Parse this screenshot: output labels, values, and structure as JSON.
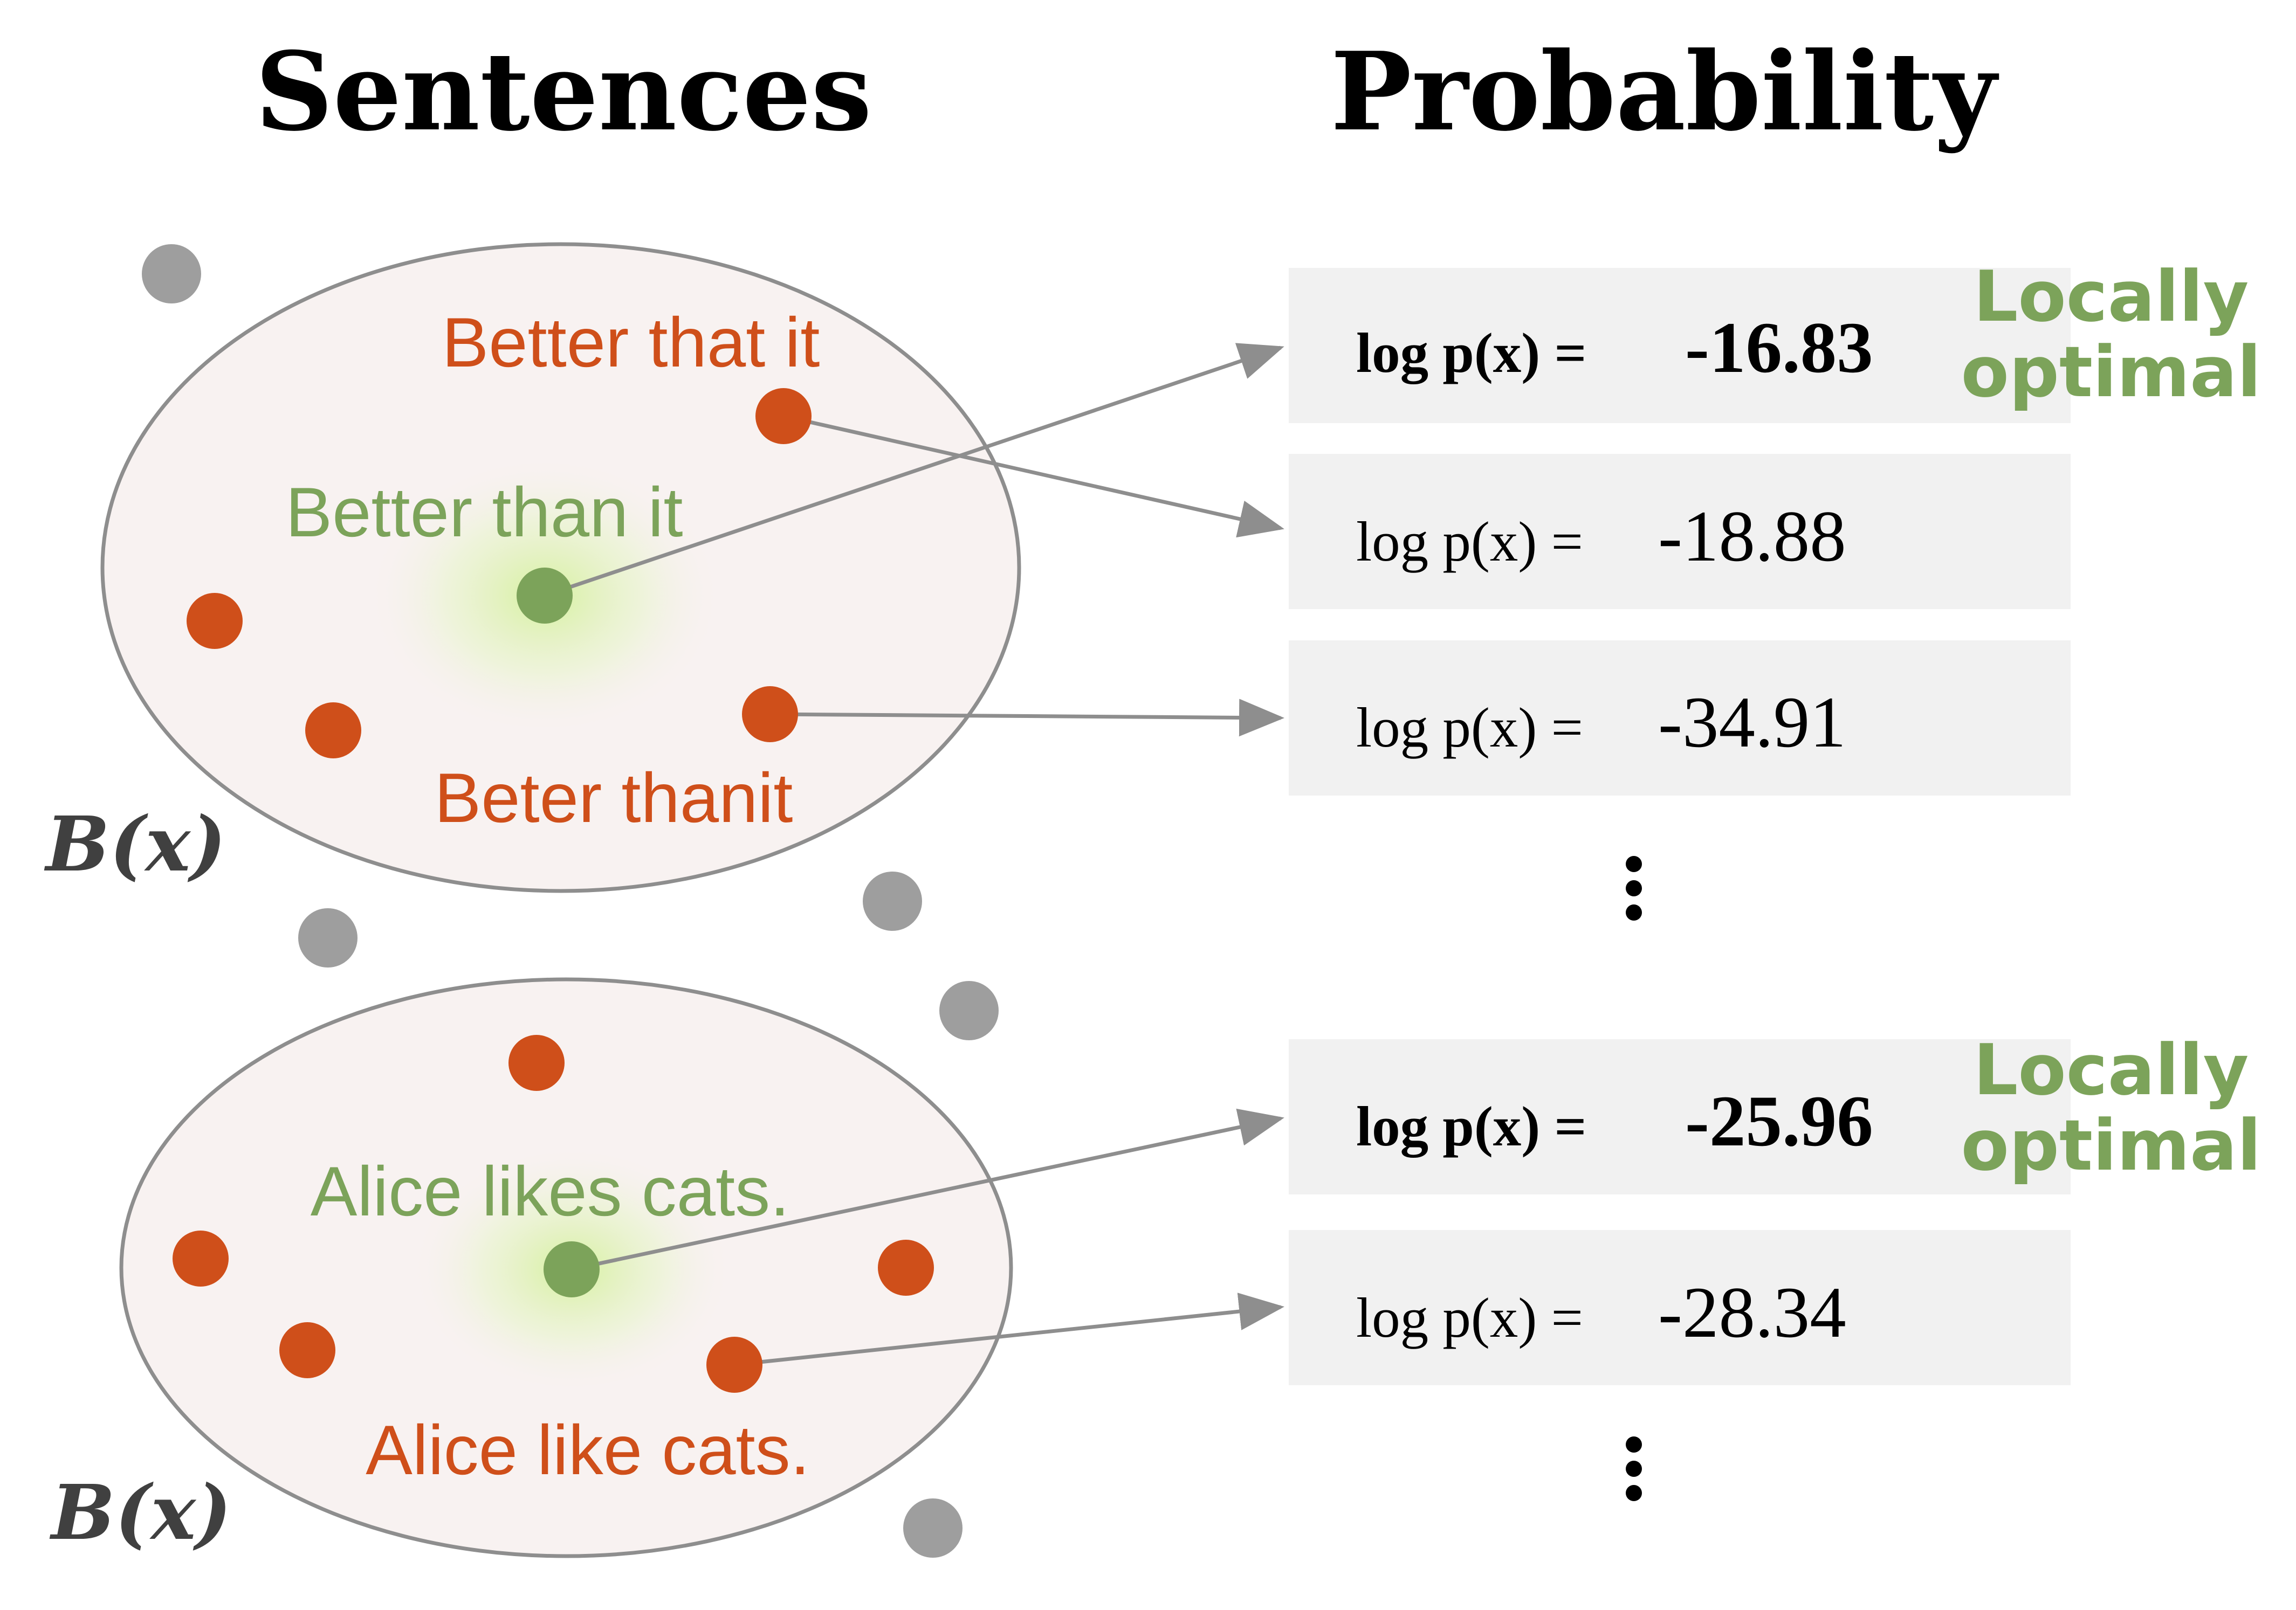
{
  "headings": {
    "sentences": "Sentences",
    "probability": "Probability"
  },
  "colors": {
    "optimal": "#7ca35a",
    "neighbor": "#cf4f1a",
    "other": "#9e9e9e",
    "ball_fill": "#f8f2f1",
    "ball_stroke": "#8e8e8e",
    "box_fill": "#f1f1f1",
    "arrow": "#8e8e8e"
  },
  "groups": [
    {
      "ball_label": "B(x)",
      "optimal_sentence": "Better than it",
      "neighbor_labels": [
        "Better that it",
        "Beter thanit"
      ],
      "scores": [
        {
          "lhs": "log p(x) =",
          "value": "-16.83",
          "bold": true,
          "note": [
            "Locally",
            "optimal"
          ]
        },
        {
          "lhs": "log p(x) =",
          "value": "-18.88",
          "bold": false
        },
        {
          "lhs": "log p(x) =",
          "value": "-34.91",
          "bold": false
        }
      ]
    },
    {
      "ball_label": "B(x)",
      "optimal_sentence": "Alice likes cats.",
      "neighbor_labels": [
        "Alice like cats."
      ],
      "scores": [
        {
          "lhs": "log p(x) =",
          "value": "-25.96",
          "bold": true,
          "note": [
            "Locally",
            "optimal"
          ]
        },
        {
          "lhs": "log p(x) =",
          "value": "-28.34",
          "bold": false
        }
      ]
    }
  ]
}
